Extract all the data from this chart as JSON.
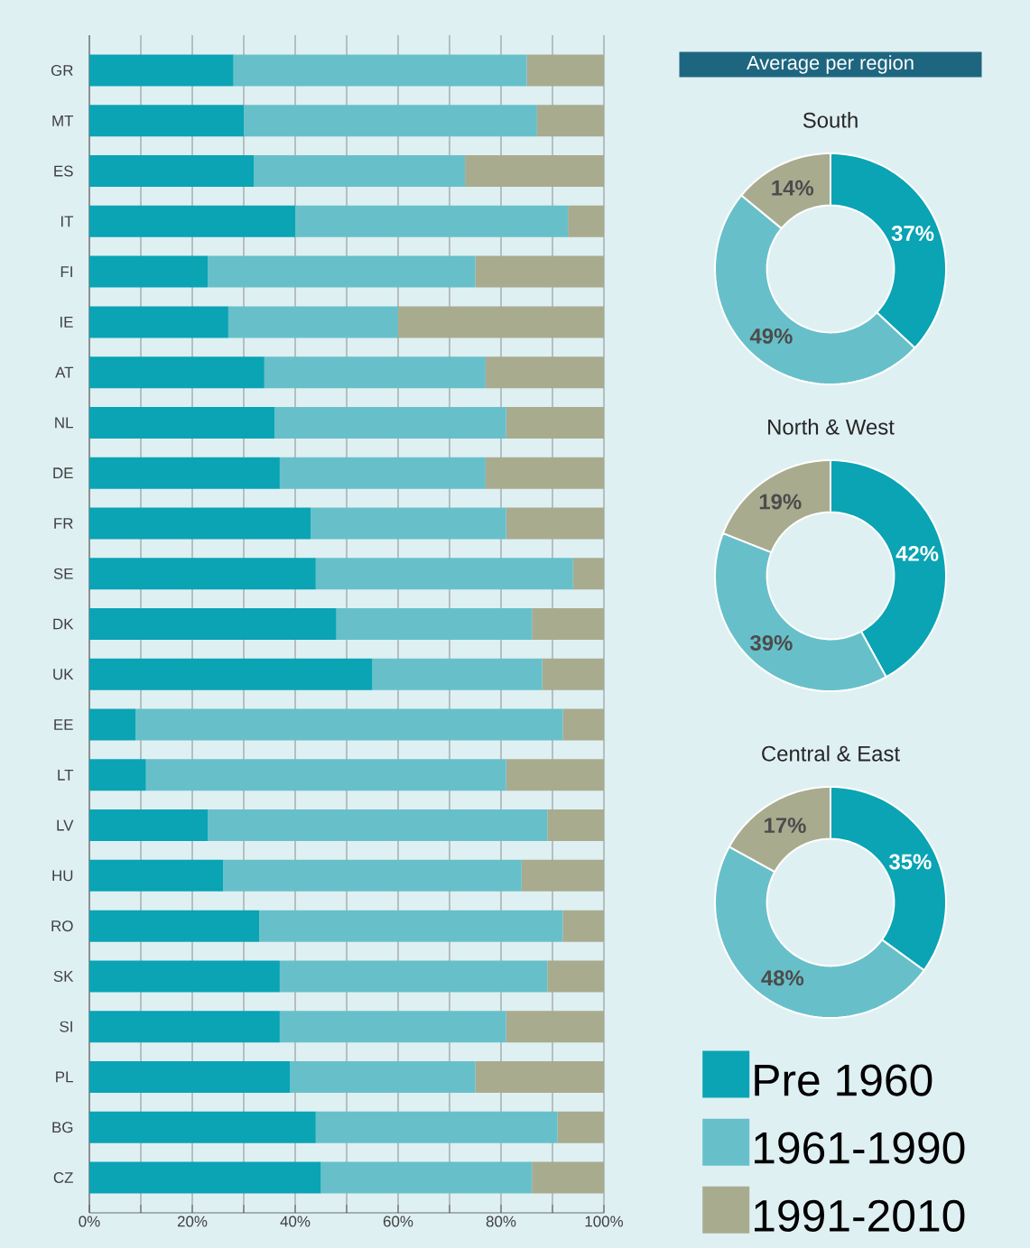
{
  "chart_data": [
    {
      "type": "bar",
      "orientation": "horizontal",
      "stacked": true,
      "categories": [
        "GR",
        "MT",
        "ES",
        "IT",
        "FI",
        "IE",
        "AT",
        "NL",
        "DE",
        "FR",
        "SE",
        "DK",
        "UK",
        "EE",
        "LT",
        "LV",
        "HU",
        "RO",
        "SK",
        "SI",
        "PL",
        "BG",
        "CZ"
      ],
      "series": [
        {
          "name": "Pre 1960",
          "color": "#0aa4b4",
          "values": [
            28,
            30,
            32,
            40,
            23,
            27,
            34,
            36,
            37,
            43,
            44,
            48,
            55,
            9,
            11,
            23,
            26,
            33,
            37,
            37,
            39,
            44,
            45
          ]
        },
        {
          "name": "1961-1990",
          "color": "#67c0c9",
          "values": [
            57,
            57,
            41,
            53,
            52,
            33,
            43,
            45,
            40,
            38,
            50,
            38,
            33,
            83,
            70,
            66,
            58,
            59,
            52,
            44,
            36,
            47,
            41
          ]
        },
        {
          "name": "1991-2010",
          "color": "#a9ab8f",
          "values": [
            15,
            13,
            27,
            7,
            25,
            40,
            23,
            19,
            23,
            19,
            6,
            14,
            12,
            8,
            19,
            11,
            16,
            8,
            11,
            19,
            25,
            9,
            14
          ]
        }
      ],
      "xlim": [
        0,
        100
      ],
      "xticks": [
        {
          "value": 0,
          "label": "0%"
        },
        {
          "value": 10,
          "label": null
        },
        {
          "value": 20,
          "label": "20%"
        },
        {
          "value": 30,
          "label": null
        },
        {
          "value": 40,
          "label": "40%"
        },
        {
          "value": 50,
          "label": null
        },
        {
          "value": 60,
          "label": "60%"
        },
        {
          "value": 70,
          "label": null
        },
        {
          "value": 80,
          "label": "80%"
        },
        {
          "value": 90,
          "label": null
        },
        {
          "value": 100,
          "label": "100%"
        }
      ],
      "grid": "x",
      "legend": "bottom right"
    },
    {
      "type": "donut",
      "title": "South",
      "annotations": [
        "Average per region"
      ],
      "categories": [
        null,
        null,
        null
      ],
      "values": [
        37,
        49,
        14
      ],
      "colors": [
        "#0aa4b4",
        "#67c0c9",
        "#a9ab8f"
      ],
      "value_labels": [
        "37%",
        "49%",
        "14%"
      ]
    },
    {
      "type": "donut",
      "title": "North & West",
      "categories": [
        null,
        null,
        null
      ],
      "values": [
        42,
        39,
        19
      ],
      "colors": [
        "#0aa4b4",
        "#67c0c9",
        "#a9ab8f"
      ],
      "value_labels": [
        "42%",
        "39%",
        "19%"
      ]
    },
    {
      "type": "donut",
      "title": "Central & East",
      "categories": [
        null,
        null,
        null
      ],
      "values": [
        35,
        48,
        17
      ],
      "colors": [
        "#0aa4b4",
        "#67c0c9",
        "#a9ab8f"
      ],
      "value_labels": [
        "35%",
        "48%",
        "17%"
      ]
    }
  ]
}
